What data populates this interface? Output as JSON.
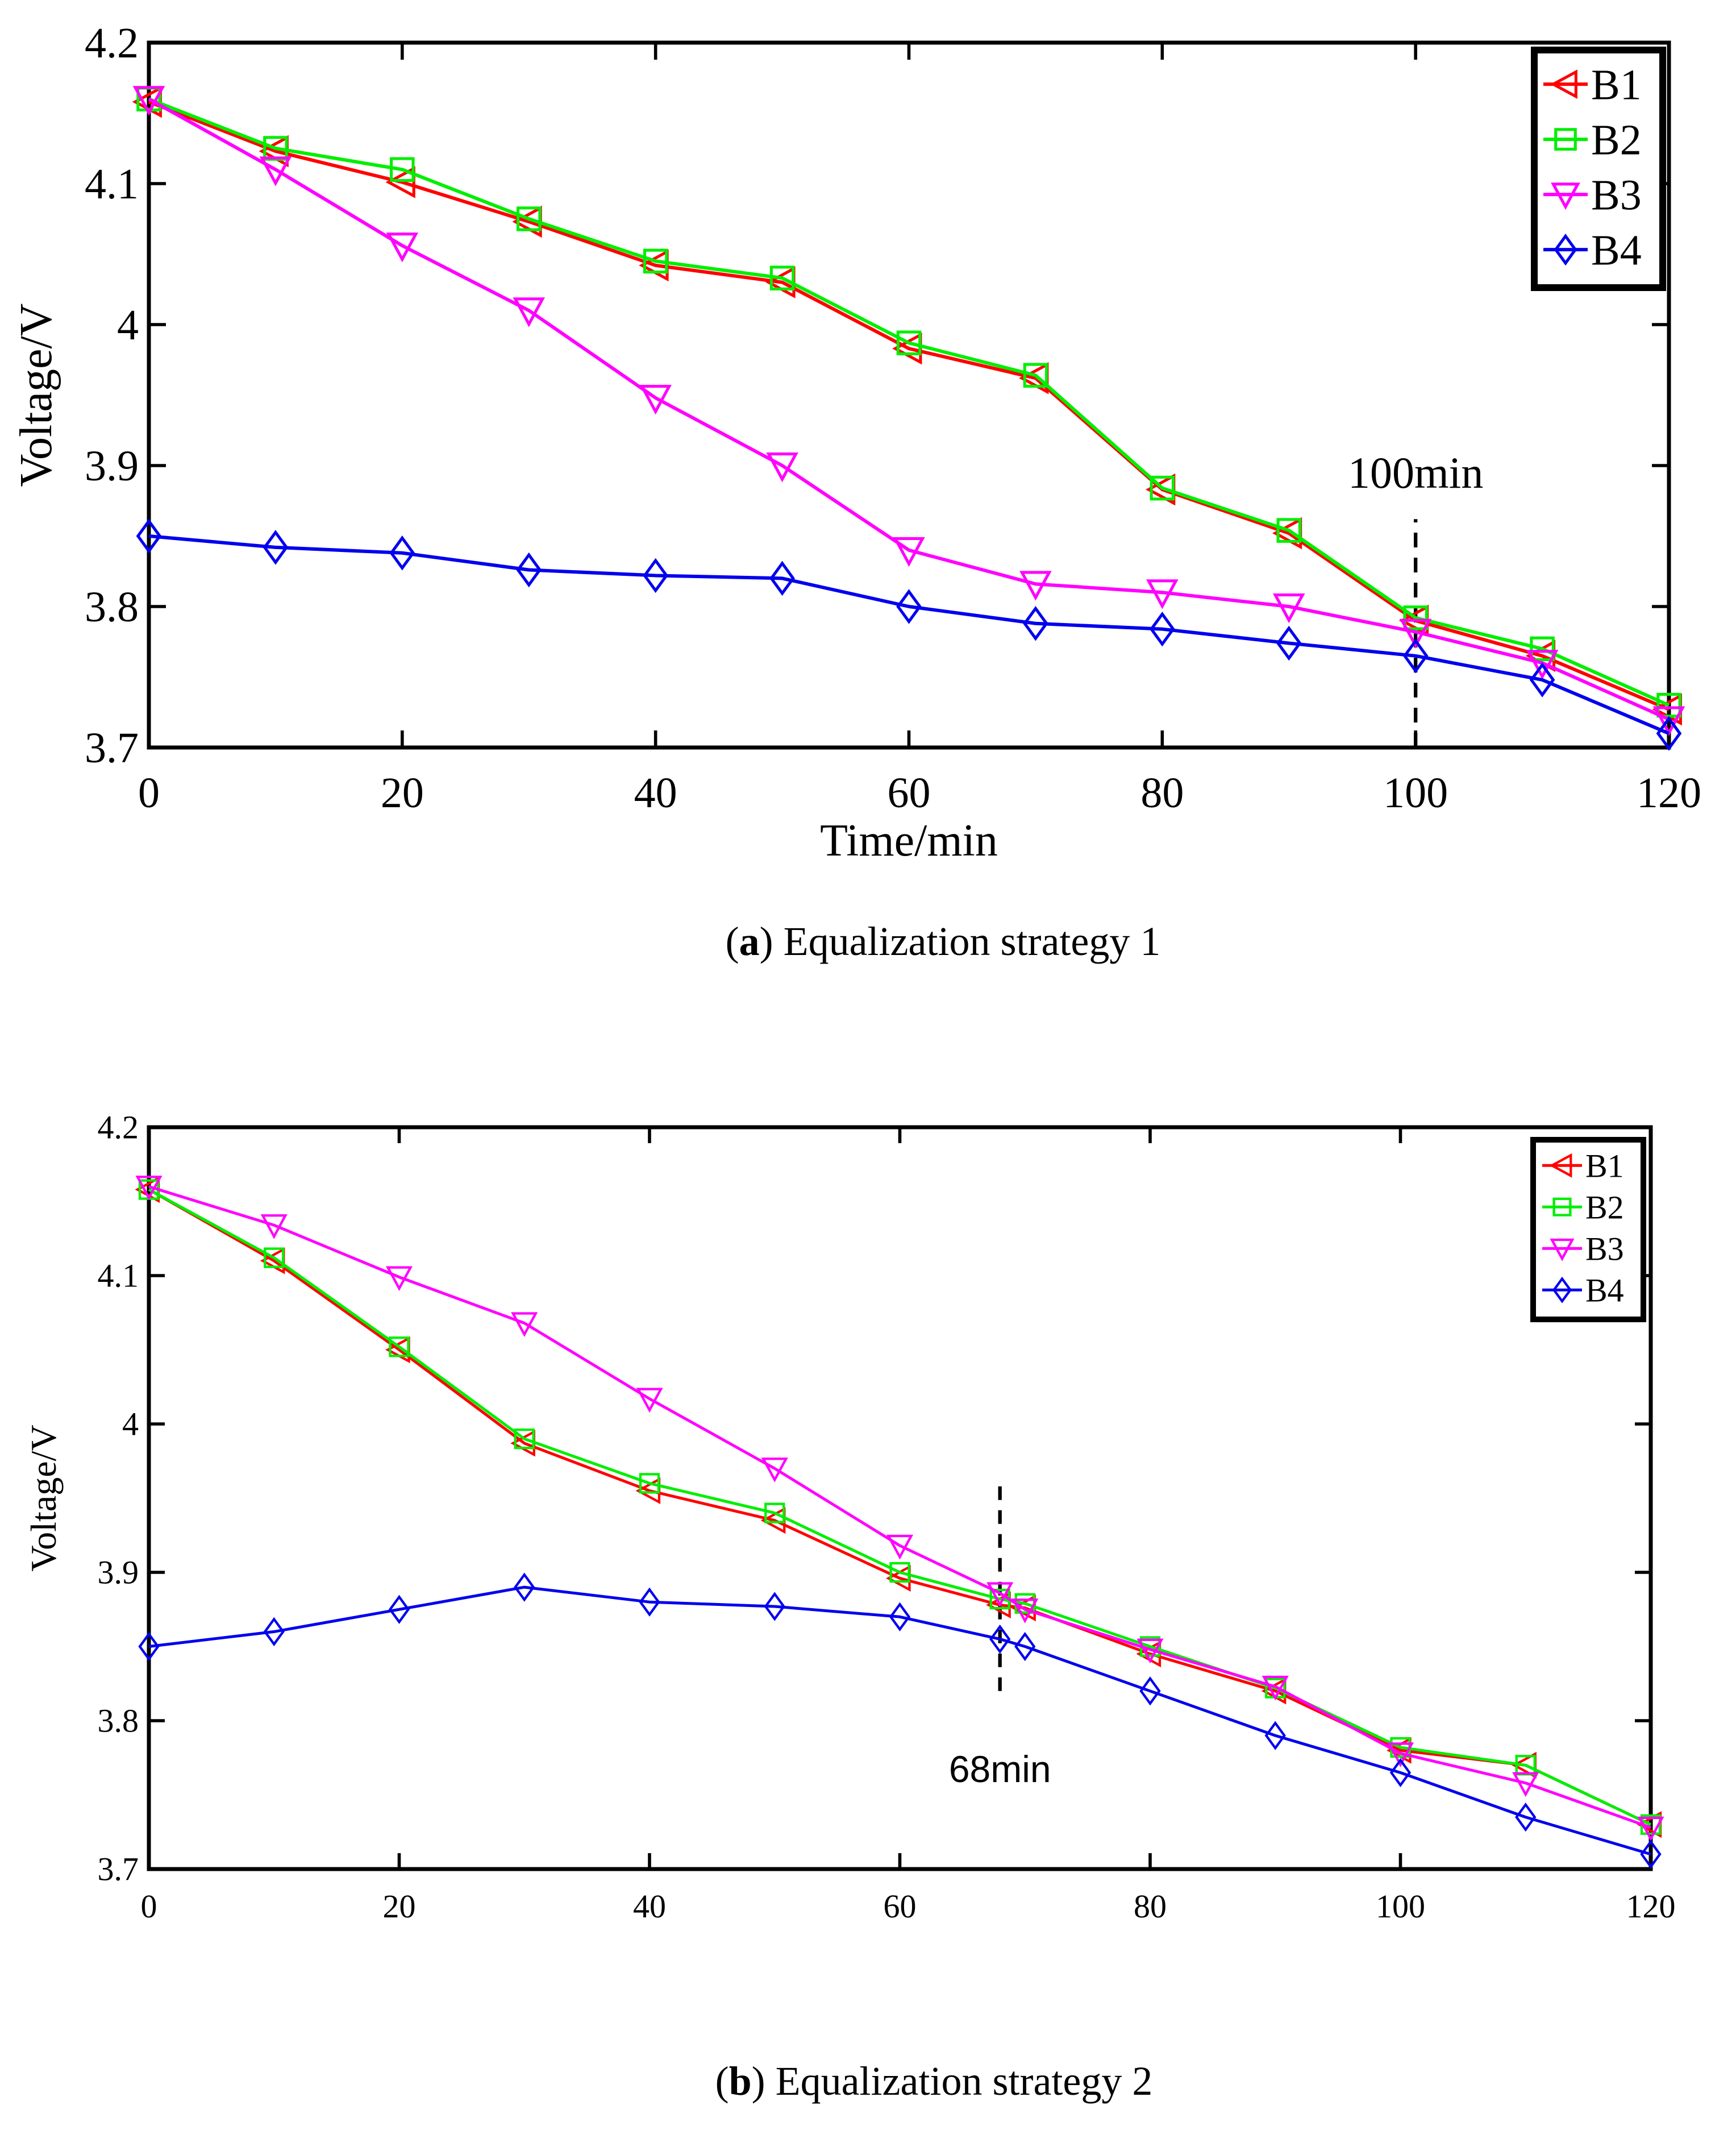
{
  "chart_data": [
    {
      "type": "line",
      "panel_label": "a",
      "caption": "Equalization strategy 1",
      "xlabel": "Time/min",
      "ylabel": "Voltage/V",
      "xlim": [
        0,
        120
      ],
      "ylim": [
        3.7,
        4.2
      ],
      "xticks": [
        "0",
        "20",
        "40",
        "60",
        "80",
        "100",
        "120"
      ],
      "yticks": [
        "3.7",
        "3.8",
        "3.9",
        "4",
        "4.1",
        "4.2"
      ],
      "grid": false,
      "legend": "top-right",
      "x": [
        0,
        10,
        20,
        30,
        40,
        50,
        60,
        70,
        80,
        90,
        100,
        110,
        120
      ],
      "series": [
        {
          "name": "B1",
          "color": "#ff0000",
          "marker": "triangle-left",
          "values": [
            4.158,
            4.123,
            4.101,
            4.073,
            4.042,
            4.03,
            3.983,
            3.962,
            3.883,
            3.852,
            3.79,
            3.765,
            3.727
          ]
        },
        {
          "name": "B2",
          "color": "#00ee00",
          "marker": "square",
          "values": [
            4.16,
            4.125,
            4.11,
            4.075,
            4.045,
            4.033,
            3.987,
            3.964,
            3.884,
            3.854,
            3.792,
            3.77,
            3.73
          ]
        },
        {
          "name": "B3",
          "color": "#ff00ff",
          "marker": "triangle-down",
          "values": [
            4.16,
            4.11,
            4.056,
            4.01,
            3.948,
            3.9,
            3.84,
            3.816,
            3.81,
            3.8,
            3.782,
            3.76,
            3.72
          ]
        },
        {
          "name": "B4",
          "color": "#0000ee",
          "marker": "diamond",
          "values": [
            3.85,
            3.842,
            3.838,
            3.826,
            3.822,
            3.82,
            3.8,
            3.788,
            3.784,
            3.774,
            3.765,
            3.748,
            3.71
          ]
        }
      ],
      "annotation": {
        "label": "100min",
        "x": 100,
        "y_from": 3.7,
        "y_to": 3.862
      }
    },
    {
      "type": "line",
      "panel_label": "b",
      "caption": "Equalization strategy 2",
      "xlabel": "",
      "ylabel": "Voltage/V",
      "xlim": [
        0,
        120
      ],
      "ylim": [
        3.7,
        4.2
      ],
      "xticks": [
        "0",
        "20",
        "40",
        "60",
        "80",
        "100",
        "120"
      ],
      "yticks": [
        "3.7",
        "3.8",
        "3.9",
        "4",
        "4.1",
        "4.2"
      ],
      "grid": false,
      "legend": "top-right",
      "x": [
        0,
        10,
        20,
        30,
        40,
        50,
        60,
        68,
        70,
        80,
        90,
        100,
        110,
        120
      ],
      "series": [
        {
          "name": "B1",
          "color": "#ff0000",
          "marker": "triangle-left",
          "values": [
            4.158,
            4.11,
            4.05,
            3.987,
            3.955,
            3.935,
            3.896,
            3.878,
            3.876,
            3.845,
            3.82,
            3.78,
            3.77,
            3.73
          ]
        },
        {
          "name": "B2",
          "color": "#00ee00",
          "marker": "square",
          "values": [
            4.158,
            4.112,
            4.052,
            3.99,
            3.96,
            3.94,
            3.9,
            3.882,
            3.879,
            3.85,
            3.822,
            3.782,
            3.77,
            3.73
          ]
        },
        {
          "name": "B3",
          "color": "#ff00ff",
          "marker": "triangle-down",
          "values": [
            4.16,
            4.134,
            4.099,
            4.068,
            4.017,
            3.97,
            3.918,
            3.886,
            3.875,
            3.848,
            3.823,
            3.778,
            3.758,
            3.728
          ]
        },
        {
          "name": "B4",
          "color": "#0000ee",
          "marker": "diamond",
          "values": [
            3.85,
            3.86,
            3.875,
            3.89,
            3.88,
            3.877,
            3.87,
            3.855,
            3.85,
            3.82,
            3.79,
            3.765,
            3.735,
            3.71
          ]
        }
      ],
      "annotation": {
        "label": "68min",
        "x": 68,
        "y_from": 3.82,
        "y_to": 3.962
      }
    }
  ]
}
